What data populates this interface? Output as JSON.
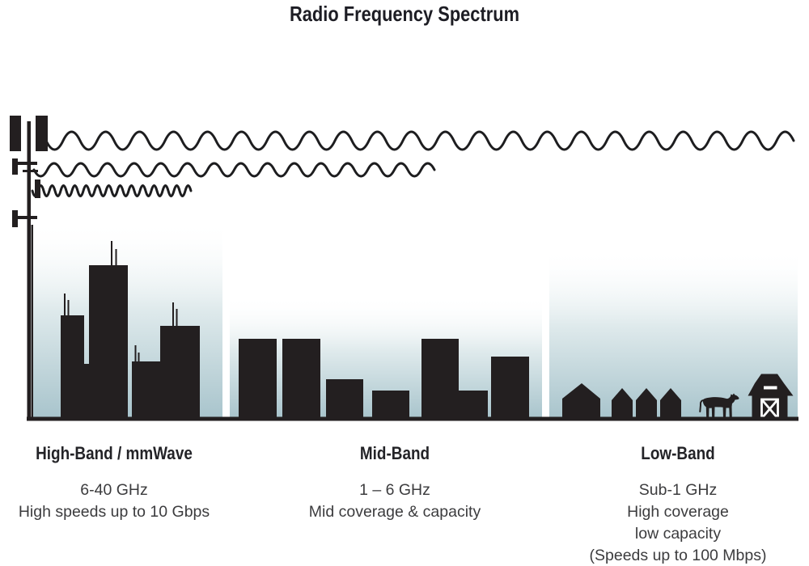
{
  "title": "Radio Frequency Spectrum",
  "bands": [
    {
      "id": "high-band",
      "label": "High-Band / mmWave",
      "frequency": "6-40 GHz",
      "lines": [
        "High speeds up to 10 Gbps"
      ],
      "scene": "dense-city-skyline"
    },
    {
      "id": "mid-band",
      "label": "Mid-Band",
      "frequency": "1 – 6 GHz",
      "lines": [
        "Mid coverage & capacity"
      ],
      "scene": "town-buildings"
    },
    {
      "id": "low-band",
      "label": "Low-Band",
      "frequency": "Sub-1 GHz",
      "lines": [
        "High coverage",
        "low capacity",
        "(Speeds up to 100 Mbps)"
      ],
      "scene": "rural-farm-houses-cow-barn"
    }
  ],
  "icons": [
    "cell-tower-icon",
    "radio-wave-long-icon",
    "radio-wave-medium-icon",
    "radio-wave-short-icon",
    "city-buildings-icon",
    "house-icon",
    "cow-icon",
    "barn-icon"
  ],
  "colors": {
    "silhouette": "#231f20",
    "wave_stroke": "#1d1d1f",
    "sky_bottom": "#a8c4cc",
    "sky_mid": "#dfeaec",
    "heading_text": "#232327",
    "caption_text": "#3c3c3e"
  }
}
